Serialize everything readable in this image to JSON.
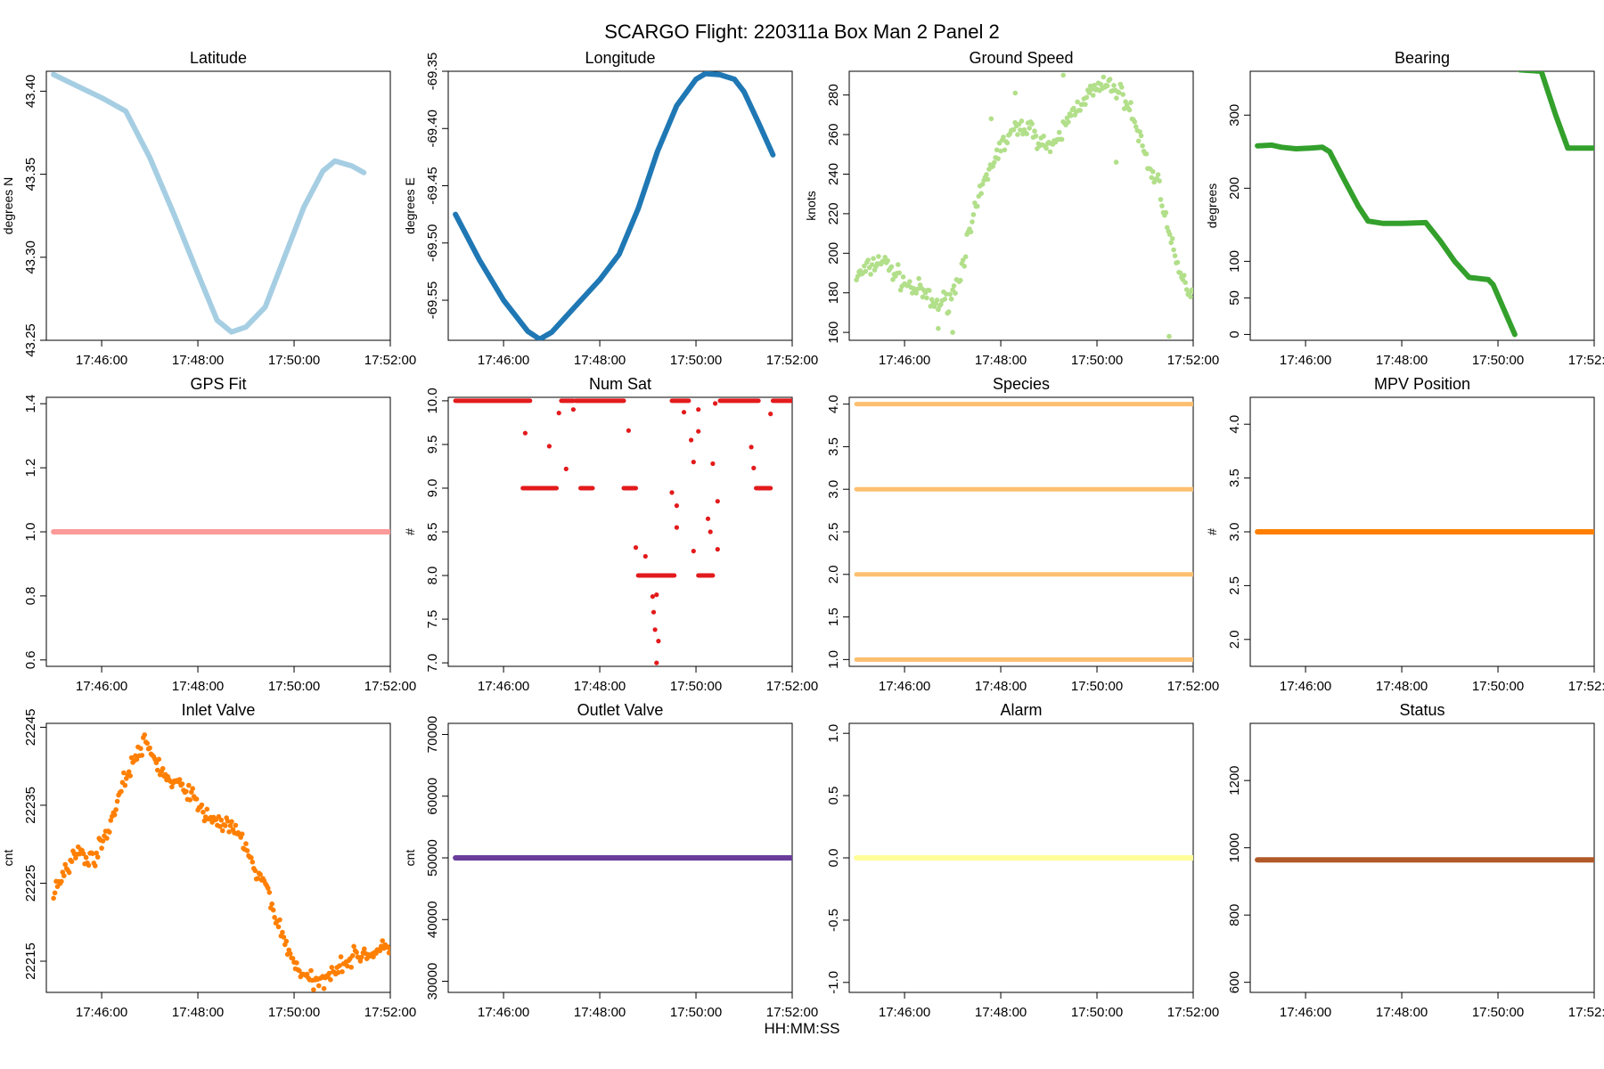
{
  "figure_title": "SCARGO Flight: 220311a  Box Man 2 Panel 2",
  "x_axis_label": "HH:MM:SS",
  "x_tick_labels": [
    "17:46:00",
    "17:48:00",
    "17:50:00",
    "17:52:00"
  ],
  "chart_data": [
    {
      "type": "scatter",
      "title": "Latitude",
      "ylabel": "degrees N",
      "color": "#a6cee3",
      "x_unit": "minutes after 17:45:00",
      "xlim": [
        -0.15,
        7.0
      ],
      "ylim": [
        43.25,
        43.412
      ],
      "yticks": [
        43.25,
        43.3,
        43.35,
        43.4
      ],
      "ytick_labels": [
        "43.25",
        "43.30",
        "43.35",
        "43.40"
      ],
      "style": "line",
      "points": [
        [
          0,
          43.41
        ],
        [
          0.5,
          43.403
        ],
        [
          1,
          43.396
        ],
        [
          1.5,
          43.388
        ],
        [
          2,
          43.36
        ],
        [
          2.5,
          43.326
        ],
        [
          3,
          43.29
        ],
        [
          3.4,
          43.262
        ],
        [
          3.7,
          43.255
        ],
        [
          4.0,
          43.258
        ],
        [
          4.4,
          43.27
        ],
        [
          4.8,
          43.3
        ],
        [
          5.2,
          43.33
        ],
        [
          5.6,
          43.352
        ],
        [
          5.85,
          43.358
        ],
        [
          6.2,
          43.355
        ],
        [
          6.45,
          43.351
        ]
      ]
    },
    {
      "type": "scatter",
      "title": "Longitude",
      "ylabel": "degrees E",
      "color": "#1f78b4",
      "x_unit": "minutes after 17:45:00",
      "xlim": [
        -0.15,
        7.0
      ],
      "ylim": [
        -69.585,
        -69.35
      ],
      "yticks": [
        -69.55,
        -69.5,
        -69.45,
        -69.4,
        -69.35
      ],
      "ytick_labels": [
        "-69.55",
        "-69.50",
        "-69.45",
        "-69.40",
        "-69.35"
      ],
      "style": "line",
      "points": [
        [
          0,
          -69.475
        ],
        [
          0.5,
          -69.515
        ],
        [
          1,
          -69.55
        ],
        [
          1.5,
          -69.577
        ],
        [
          1.75,
          -69.584
        ],
        [
          2.0,
          -69.578
        ],
        [
          2.5,
          -69.555
        ],
        [
          3.0,
          -69.532
        ],
        [
          3.4,
          -69.51
        ],
        [
          3.8,
          -69.47
        ],
        [
          4.2,
          -69.42
        ],
        [
          4.6,
          -69.38
        ],
        [
          5.0,
          -69.357
        ],
        [
          5.2,
          -69.352
        ],
        [
          5.5,
          -69.353
        ],
        [
          5.8,
          -69.357
        ],
        [
          6.0,
          -69.368
        ],
        [
          6.3,
          -69.395
        ],
        [
          6.6,
          -69.423
        ]
      ]
    },
    {
      "type": "scatter",
      "title": "Ground Speed",
      "ylabel": "knots",
      "color": "#b2df8a",
      "x_unit": "minutes after 17:45:00",
      "xlim": [
        -0.15,
        7.0
      ],
      "ylim": [
        156,
        292
      ],
      "yticks": [
        160,
        180,
        200,
        220,
        240,
        260,
        280
      ],
      "ytick_labels": [
        "160",
        "180",
        "200",
        "220",
        "240",
        "260",
        "280"
      ],
      "style": "noisy",
      "noise": 5,
      "points": [
        [
          0,
          188
        ],
        [
          0.3,
          193
        ],
        [
          0.5,
          197
        ],
        [
          0.8,
          190
        ],
        [
          1.1,
          183
        ],
        [
          1.4,
          180
        ],
        [
          1.6,
          174
        ],
        [
          1.9,
          176
        ],
        [
          2.1,
          185
        ],
        [
          2.3,
          205
        ],
        [
          2.6,
          232
        ],
        [
          2.9,
          250
        ],
        [
          3.2,
          260
        ],
        [
          3.5,
          265
        ],
        [
          3.8,
          258
        ],
        [
          4.1,
          252
        ],
        [
          4.4,
          268
        ],
        [
          4.7,
          278
        ],
        [
          5.0,
          283
        ],
        [
          5.3,
          285
        ],
        [
          5.6,
          278
        ],
        [
          5.9,
          258
        ],
        [
          6.1,
          242
        ],
        [
          6.3,
          235
        ],
        [
          6.45,
          215
        ],
        [
          6.6,
          198
        ],
        [
          6.8,
          185
        ],
        [
          7.0,
          180
        ]
      ],
      "outliers": [
        [
          1.7,
          162
        ],
        [
          2.0,
          160
        ],
        [
          2.8,
          268
        ],
        [
          3.3,
          281
        ],
        [
          4.3,
          290
        ],
        [
          6.5,
          158
        ],
        [
          5.4,
          246
        ]
      ]
    },
    {
      "type": "scatter",
      "title": "Bearing",
      "ylabel": "degrees",
      "color": "#33a02c",
      "x_unit": "minutes after 17:45:00",
      "xlim": [
        -0.15,
        7.0
      ],
      "ylim": [
        -8,
        360
      ],
      "yticks": [
        0,
        50,
        100,
        200,
        300
      ],
      "ytick_labels": [
        "0",
        "50",
        "100",
        "200",
        "300"
      ],
      "style": "line",
      "points": [
        [
          0,
          258
        ],
        [
          0.3,
          259
        ],
        [
          0.5,
          256
        ],
        [
          0.8,
          254
        ],
        [
          1.1,
          255
        ],
        [
          1.35,
          256
        ],
        [
          1.5,
          250
        ],
        [
          1.8,
          212
        ],
        [
          2.1,
          175
        ],
        [
          2.3,
          155
        ],
        [
          2.6,
          152
        ],
        [
          3.0,
          152
        ],
        [
          3.5,
          153
        ],
        [
          3.8,
          128
        ],
        [
          4.1,
          100
        ],
        [
          4.4,
          78
        ],
        [
          4.8,
          75
        ],
        [
          4.9,
          68
        ],
        [
          5.35,
          0
        ]
      ],
      "segments": [
        [
          [
            5.45,
            362
          ],
          [
            5.9,
            360
          ],
          [
            6.2,
            300
          ],
          [
            6.45,
            255
          ],
          [
            7.0,
            255
          ]
        ]
      ]
    },
    {
      "type": "scatter",
      "title": "GPS Fit",
      "ylabel": "",
      "color": "#fb9a99",
      "x_unit": "minutes after 17:45:00",
      "xlim": [
        -0.15,
        7.0
      ],
      "ylim": [
        0.58,
        1.42
      ],
      "yticks": [
        0.6,
        0.8,
        1.0,
        1.2,
        1.4
      ],
      "ytick_labels": [
        "0.6",
        "0.8",
        "1.0",
        "1.2",
        "1.4"
      ],
      "style": "line",
      "points": [
        [
          0,
          1.0
        ],
        [
          7.0,
          1.0
        ]
      ]
    },
    {
      "type": "scatter",
      "title": "Num Sat",
      "ylabel": "#",
      "color": "#e31a1c",
      "x_unit": "minutes after 17:45:00",
      "xlim": [
        -0.15,
        7.0
      ],
      "ylim": [
        6.96,
        10.04
      ],
      "yticks": [
        7.0,
        7.5,
        8.0,
        8.5,
        9.0,
        9.5,
        10.0
      ],
      "ytick_labels": [
        "7.0",
        "7.5",
        "8.0",
        "8.5",
        "9.0",
        "9.5",
        "10.0"
      ],
      "style": "points",
      "runs": [
        [
          0,
          1.55,
          10
        ],
        [
          1.4,
          2.1,
          9
        ],
        [
          2.2,
          2.45,
          10
        ],
        [
          2.6,
          2.85,
          9
        ],
        [
          2.5,
          3.5,
          10
        ],
        [
          3.5,
          3.75,
          9
        ],
        [
          3.8,
          4.55,
          8
        ],
        [
          4.5,
          4.85,
          10
        ],
        [
          5.05,
          5.35,
          8
        ],
        [
          5.5,
          6.3,
          10
        ],
        [
          6.25,
          6.55,
          9
        ],
        [
          6.6,
          7.0,
          10
        ]
      ],
      "points": [
        [
          1.45,
          9.63
        ],
        [
          1.95,
          9.48
        ],
        [
          2.15,
          9.86
        ],
        [
          2.3,
          9.22
        ],
        [
          2.45,
          9.9
        ],
        [
          3.6,
          9.66
        ],
        [
          3.75,
          8.32
        ],
        [
          3.95,
          8.22
        ],
        [
          4.1,
          7.76
        ],
        [
          4.18,
          7.78
        ],
        [
          4.12,
          7.58
        ],
        [
          4.15,
          7.38
        ],
        [
          4.22,
          7.25
        ],
        [
          4.18,
          7.0
        ],
        [
          4.5,
          8.95
        ],
        [
          4.6,
          8.8
        ],
        [
          4.6,
          8.55
        ],
        [
          4.75,
          9.87
        ],
        [
          4.9,
          9.55
        ],
        [
          4.95,
          9.3
        ],
        [
          4.95,
          8.28
        ],
        [
          5.05,
          9.65
        ],
        [
          5.05,
          9.9
        ],
        [
          5.25,
          8.65
        ],
        [
          5.3,
          8.5
        ],
        [
          5.35,
          9.28
        ],
        [
          5.4,
          9.97
        ],
        [
          5.45,
          8.85
        ],
        [
          5.45,
          8.3
        ],
        [
          6.15,
          9.47
        ],
        [
          6.2,
          9.23
        ],
        [
          6.55,
          9.85
        ]
      ]
    },
    {
      "type": "scatter",
      "title": "Species",
      "ylabel": "",
      "color": "#fdbf6f",
      "x_unit": "minutes after 17:45:00",
      "xlim": [
        -0.15,
        7.0
      ],
      "ylim": [
        0.92,
        4.08
      ],
      "yticks": [
        1.0,
        1.5,
        2.0,
        2.5,
        3.0,
        3.5,
        4.0
      ],
      "ytick_labels": [
        "1.0",
        "1.5",
        "2.0",
        "2.5",
        "3.0",
        "3.5",
        "4.0"
      ],
      "style": "hlines",
      "levels": [
        1,
        2,
        3,
        4
      ]
    },
    {
      "type": "scatter",
      "title": "MPV Position",
      "ylabel": "#",
      "color": "#ff7f00",
      "x_unit": "minutes after 17:45:00",
      "xlim": [
        -0.15,
        7.0
      ],
      "ylim": [
        1.75,
        4.25
      ],
      "yticks": [
        2.0,
        2.5,
        3.0,
        3.5,
        4.0
      ],
      "ytick_labels": [
        "2.0",
        "2.5",
        "3.0",
        "3.5",
        "4.0"
      ],
      "style": "line",
      "points": [
        [
          0,
          3.0
        ],
        [
          7.0,
          3.0
        ]
      ]
    },
    {
      "type": "scatter",
      "title": "Inlet Valve",
      "ylabel": "cnt",
      "color": "#ff7f00",
      "x_unit": "minutes after 17:45:00",
      "xlim": [
        -0.15,
        7.0
      ],
      "ylim": [
        22211,
        22245.5
      ],
      "yticks": [
        22215,
        22225,
        22235,
        22245
      ],
      "ytick_labels": [
        "22215",
        "22225",
        "22235",
        "22245"
      ],
      "style": "noisy",
      "noise": 1.1,
      "points": [
        [
          0,
          22224
        ],
        [
          0.25,
          22227
        ],
        [
          0.5,
          22229
        ],
        [
          0.8,
          22228
        ],
        [
          1.0,
          22230
        ],
        [
          1.2,
          22233
        ],
        [
          1.4,
          22237
        ],
        [
          1.6,
          22240
        ],
        [
          1.9,
          22243
        ],
        [
          2.1,
          22241
        ],
        [
          2.4,
          22238
        ],
        [
          2.8,
          22237
        ],
        [
          3.1,
          22234
        ],
        [
          3.4,
          22233
        ],
        [
          3.7,
          22232
        ],
        [
          4.0,
          22230
        ],
        [
          4.2,
          22226
        ],
        [
          4.4,
          22225
        ],
        [
          4.6,
          22221
        ],
        [
          4.9,
          22216
        ],
        [
          5.2,
          22213
        ],
        [
          5.5,
          22212
        ],
        [
          5.8,
          22214
        ],
        [
          6.1,
          22215
        ],
        [
          6.4,
          22216
        ],
        [
          6.7,
          22216
        ],
        [
          7.0,
          22217
        ]
      ]
    },
    {
      "type": "scatter",
      "title": "Outlet Valve",
      "ylabel": "cnt",
      "color": "#6a3d9a",
      "x_unit": "minutes after 17:45:00",
      "xlim": [
        -0.15,
        7.0
      ],
      "ylim": [
        28200,
        71800
      ],
      "yticks": [
        30000,
        40000,
        50000,
        60000,
        70000
      ],
      "ytick_labels": [
        "30000",
        "40000",
        "50000",
        "60000",
        "70000"
      ],
      "style": "line",
      "points": [
        [
          0,
          50000
        ],
        [
          7.0,
          50000
        ]
      ]
    },
    {
      "type": "scatter",
      "title": "Alarm",
      "ylabel": "",
      "color": "#ffff99",
      "x_unit": "minutes after 17:45:00",
      "xlim": [
        -0.15,
        7.0
      ],
      "ylim": [
        -1.08,
        1.08
      ],
      "yticks": [
        -1.0,
        -0.5,
        0.0,
        0.5,
        1.0
      ],
      "ytick_labels": [
        "-1.0",
        "-0.5",
        "0.0",
        "0.5",
        "1.0"
      ],
      "style": "line",
      "points": [
        [
          0,
          0
        ],
        [
          7.0,
          0
        ]
      ]
    },
    {
      "type": "scatter",
      "title": "Status",
      "ylabel": "",
      "color": "#b15928",
      "x_unit": "minutes after 17:45:00",
      "xlim": [
        -0.15,
        7.0
      ],
      "ylim": [
        570,
        1370
      ],
      "yticks": [
        600,
        800,
        1000,
        1200
      ],
      "ytick_labels": [
        "600",
        "800",
        "1000",
        "1200"
      ],
      "style": "line",
      "points": [
        [
          0,
          964
        ],
        [
          7.0,
          964
        ]
      ]
    }
  ]
}
